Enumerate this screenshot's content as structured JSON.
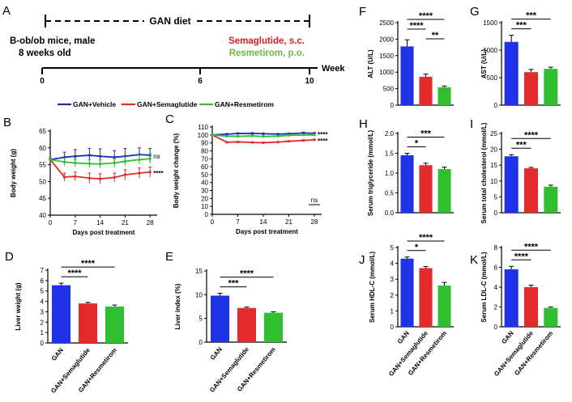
{
  "colors": {
    "gan": "#1f33e6",
    "sema": "#e32b2b",
    "resm": "#2fbf31",
    "vehicle": "#1c2fb3",
    "semaText": "#d42020",
    "resmText": "#6fb648"
  },
  "panelA": {
    "label": "A",
    "diet": "GAN diet",
    "mice_line1": "B-ob/ob mice, male",
    "mice_line2": "8 weeks old",
    "sema": "Semaglutide, s.c.",
    "resm": "Resmetirom, p.o.",
    "week": "Week",
    "ticks": [
      "0",
      "6",
      "10"
    ]
  },
  "legend": [
    "GAN+Vehicle",
    "GAN+Semaglutide",
    "GAN+Resmetirom"
  ],
  "chart_data": [
    {
      "id": "B",
      "type": "line",
      "panel_label": "B",
      "xlabel": "Days post treatment",
      "ylabel": "Body weight (g)",
      "xlim": [
        0,
        30
      ],
      "ylim": [
        40,
        65
      ],
      "xticks": [
        0,
        7,
        14,
        21,
        28
      ],
      "yticks": [
        40,
        45,
        50,
        55,
        60,
        65
      ],
      "x": [
        0,
        4,
        7,
        11,
        14,
        18,
        21,
        25,
        28
      ],
      "series": [
        {
          "name": "GAN+Vehicle",
          "values": [
            56.5,
            57.2,
            57.5,
            57.8,
            57.5,
            57.2,
            57.5,
            58.0,
            57.8
          ],
          "err": [
            0.5,
            1.5,
            2.0,
            2.0,
            2.2,
            2.0,
            2.3,
            2.0,
            2.0
          ]
        },
        {
          "name": "GAN+Semaglutide",
          "values": [
            56.5,
            51.3,
            51.5,
            51.0,
            50.8,
            51.2,
            52.0,
            52.5,
            52.8
          ],
          "err": [
            0.5,
            1.2,
            1.3,
            1.5,
            1.5,
            1.3,
            1.5,
            1.5,
            1.5
          ]
        },
        {
          "name": "GAN+Resmetirom",
          "values": [
            56.5,
            55.8,
            55.5,
            55.3,
            55.2,
            55.5,
            56.0,
            56.5,
            56.8
          ],
          "err": [
            0.5,
            1.2,
            1.2,
            1.2,
            1.2,
            1.3,
            1.3,
            1.3,
            1.5
          ]
        }
      ],
      "annotations": [
        "ns",
        "****"
      ]
    },
    {
      "id": "C",
      "type": "line",
      "panel_label": "C",
      "xlabel": "Days post treatment",
      "ylabel": "Body weight change (%)",
      "xlim": [
        0,
        30
      ],
      "ylim": [
        0,
        110
      ],
      "xticks": [
        0,
        7,
        14,
        21,
        28
      ],
      "yticks": [
        0,
        10,
        20,
        30,
        40,
        50,
        60,
        70,
        80,
        90,
        100,
        110
      ],
      "x": [
        0,
        4,
        7,
        11,
        14,
        18,
        21,
        25,
        28
      ],
      "series": [
        {
          "name": "GAN+Vehicle",
          "values": [
            100,
            101.0,
            101.8,
            102.0,
            101.5,
            101.0,
            101.5,
            102.5,
            102.0
          ],
          "err": [
            0,
            0.6,
            0.8,
            0.8,
            0.8,
            0.8,
            0.8,
            1.0,
            1.0
          ]
        },
        {
          "name": "GAN+Semaglutide",
          "values": [
            100,
            90.8,
            91.2,
            90.5,
            90.2,
            91.0,
            92.0,
            93.0,
            93.8
          ],
          "err": [
            0,
            0.6,
            0.6,
            0.6,
            0.6,
            0.6,
            0.8,
            1.0,
            1.0
          ]
        },
        {
          "name": "GAN+Resmetirom",
          "values": [
            100,
            98.5,
            98.2,
            98.8,
            98.0,
            98.5,
            99.5,
            100.0,
            100.0
          ],
          "err": [
            0,
            0.8,
            0.8,
            1.2,
            1.0,
            1.2,
            1.2,
            1.2,
            1.2
          ]
        }
      ],
      "annotations": [
        "****",
        "****",
        "ns"
      ]
    },
    {
      "id": "D",
      "type": "bar",
      "panel_label": "D",
      "ylabel": "Liver weight (g)",
      "categories": [
        "GAN",
        "GAN+Semaglutide",
        "GAN+Resmetirom"
      ],
      "values": [
        5.55,
        3.8,
        3.5
      ],
      "err": [
        0.2,
        0.1,
        0.15
      ],
      "ylim": [
        0,
        7
      ],
      "yticks": [
        0,
        1,
        2,
        3,
        4,
        5,
        6,
        7
      ],
      "brackets": [
        {
          "from": 0,
          "to": 1,
          "label": "****"
        },
        {
          "from": 0,
          "to": 2,
          "label": "****"
        }
      ]
    },
    {
      "id": "E",
      "type": "bar",
      "panel_label": "E",
      "ylabel": "Liver index (%)",
      "categories": [
        "GAN",
        "GAN+Semaglutide",
        "GAN+Resmetirom"
      ],
      "values": [
        9.8,
        7.2,
        6.2
      ],
      "err": [
        0.5,
        0.2,
        0.2
      ],
      "ylim": [
        0,
        15
      ],
      "yticks": [
        0,
        5,
        10,
        15
      ],
      "brackets": [
        {
          "from": 0,
          "to": 1,
          "label": "***"
        },
        {
          "from": 0,
          "to": 2,
          "label": "****"
        }
      ]
    },
    {
      "id": "F",
      "type": "bar",
      "panel_label": "F",
      "ylabel": "ALT (U/L)",
      "categories": [
        "GAN",
        "GAN+Semaglutide",
        "GAN+Resmetirom"
      ],
      "xticklabels": false,
      "values": [
        1780,
        860,
        540
      ],
      "err": [
        200,
        80,
        40
      ],
      "ylim": [
        0,
        2500
      ],
      "yticks": [
        0,
        500,
        1000,
        1500,
        2000,
        2500
      ],
      "brackets": [
        {
          "from": 1,
          "to": 2,
          "label": "**"
        },
        {
          "from": 0,
          "to": 1,
          "label": "****"
        },
        {
          "from": 0,
          "to": 2,
          "label": "****"
        }
      ]
    },
    {
      "id": "G",
      "type": "bar",
      "panel_label": "G",
      "ylabel": "AST (U/L)",
      "categories": [
        "GAN",
        "GAN+Semaglutide",
        "GAN+Resmetirom"
      ],
      "xticklabels": false,
      "values": [
        1150,
        600,
        660
      ],
      "err": [
        120,
        50,
        30
      ],
      "ylim": [
        0,
        1500
      ],
      "yticks": [
        0,
        500,
        1000,
        1500
      ],
      "brackets": [
        {
          "from": 0,
          "to": 1,
          "label": "***"
        },
        {
          "from": 0,
          "to": 2,
          "label": "***"
        }
      ]
    },
    {
      "id": "H",
      "type": "bar",
      "panel_label": "H",
      "ylabel": "Serum triglyceride (mmol/L)",
      "categories": [
        "GAN",
        "GAN+Semaglutide",
        "GAN+Resmetirom"
      ],
      "xticklabels": false,
      "values": [
        1.45,
        1.2,
        1.1
      ],
      "err": [
        0.05,
        0.05,
        0.05
      ],
      "ylim": [
        0,
        2.0
      ],
      "yticks": [
        0.0,
        0.5,
        1.0,
        1.5,
        2.0
      ],
      "ytickfmt": 1,
      "brackets": [
        {
          "from": 0,
          "to": 1,
          "label": "*"
        },
        {
          "from": 0,
          "to": 2,
          "label": "***"
        }
      ]
    },
    {
      "id": "I",
      "type": "bar",
      "panel_label": "I",
      "ylabel": "Serum total cholesterol (mmol/L)",
      "categories": [
        "GAN",
        "GAN+Semaglutide",
        "GAN+Resmetirom"
      ],
      "xticklabels": false,
      "values": [
        17.8,
        14.0,
        8.2
      ],
      "err": [
        0.5,
        0.3,
        0.5
      ],
      "ylim": [
        0,
        25
      ],
      "yticks": [
        0,
        5,
        10,
        15,
        20,
        25
      ],
      "brackets": [
        {
          "from": 0,
          "to": 1,
          "label": "***"
        },
        {
          "from": 0,
          "to": 2,
          "label": "****"
        }
      ]
    },
    {
      "id": "J",
      "type": "bar",
      "panel_label": "J",
      "ylabel": "Serum HDL-C (mmol/L)",
      "categories": [
        "GAN",
        "GAN+Semaglutide",
        "GAN+Resmetirom"
      ],
      "values": [
        4.3,
        3.7,
        2.6
      ],
      "err": [
        0.1,
        0.1,
        0.2
      ],
      "ylim": [
        0,
        5
      ],
      "yticks": [
        0,
        1,
        2,
        3,
        4,
        5
      ],
      "brackets": [
        {
          "from": 0,
          "to": 1,
          "label": "*"
        },
        {
          "from": 0,
          "to": 2,
          "label": "****"
        }
      ]
    },
    {
      "id": "K",
      "type": "bar",
      "panel_label": "K",
      "ylabel": "Serum LDL-C (mmol/L)",
      "categories": [
        "GAN",
        "GAN+Semaglutide",
        "GAN+Resmetirom"
      ],
      "values": [
        5.8,
        4.0,
        1.9
      ],
      "err": [
        0.3,
        0.2,
        0.1
      ],
      "ylim": [
        0,
        8
      ],
      "yticks": [
        0,
        2,
        4,
        6,
        8
      ],
      "brackets": [
        {
          "from": 0,
          "to": 1,
          "label": "****"
        },
        {
          "from": 0,
          "to": 2,
          "label": "****"
        }
      ]
    }
  ]
}
